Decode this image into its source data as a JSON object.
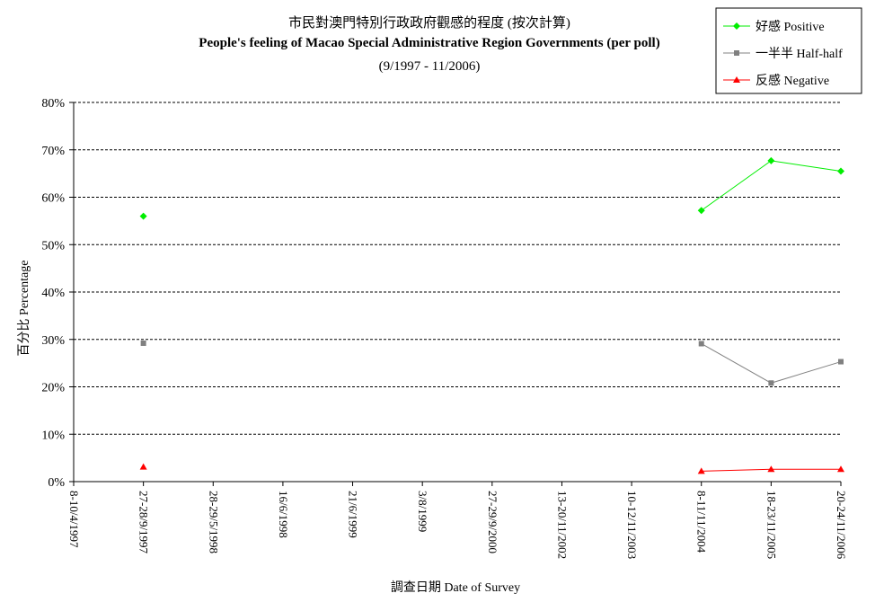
{
  "chart_data": {
    "type": "line",
    "title": "市民對澳門特別行政政府觀感的程度 (按次計算)",
    "subtitle": "People's feeling of Macao Special Administrative Region Governments (per poll)",
    "date_range": "(9/1997 - 11/2006)",
    "xlabel": "調查日期 Date of Survey",
    "ylabel": "百分比 Percentage",
    "ylim": [
      0,
      80
    ],
    "y_ticks": [
      "0%",
      "10%",
      "20%",
      "30%",
      "40%",
      "50%",
      "60%",
      "70%",
      "80%"
    ],
    "grid": true,
    "legend_position": "top-right",
    "categories": [
      "8-10/4/1997",
      "27-28/9/1997",
      "28-29/5/1998",
      "16/6/1998",
      "21/6/1999",
      "3/8/1999",
      "27-29/9/2000",
      "13-20/11/2002",
      "10-12/11/2003",
      "8-11/11/2004",
      "18-23/11/2005",
      "20-24/11/2006"
    ],
    "series": [
      {
        "name": "好感 Positive",
        "color": "#00ee00",
        "marker": "diamond",
        "values": [
          null,
          56.0,
          null,
          null,
          null,
          null,
          null,
          null,
          null,
          57.2,
          67.7,
          65.5
        ]
      },
      {
        "name": "一半半 Half-half",
        "color": "#808080",
        "marker": "square",
        "values": [
          null,
          29.2,
          null,
          null,
          null,
          null,
          null,
          null,
          null,
          29.1,
          20.8,
          25.3
        ]
      },
      {
        "name": "反感 Negative",
        "color": "#ff0000",
        "marker": "triangle",
        "values": [
          null,
          3.1,
          null,
          null,
          null,
          null,
          null,
          null,
          null,
          2.2,
          2.6,
          2.6
        ]
      }
    ]
  }
}
